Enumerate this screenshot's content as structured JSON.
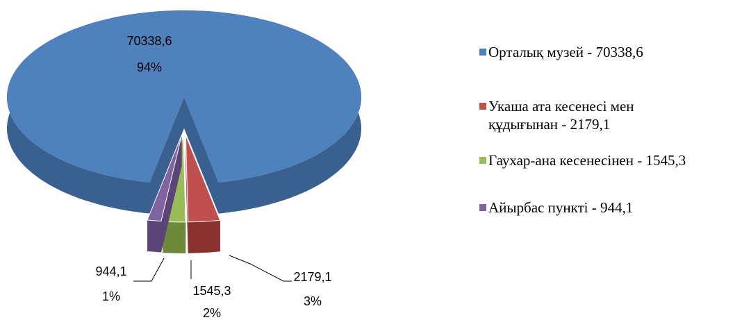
{
  "chart_data": {
    "type": "pie3d",
    "categories": [
      "Орталық музей - 70338,6",
      "Укаша ата кесенесі мен құдығынан - 2179,1",
      "Гаухар-ана кесенесінен - 1545,3",
      "Айырбас пункті - 944,1"
    ],
    "values": [
      70338.6,
      2179.1,
      1545.3,
      944.1
    ],
    "value_labels": [
      "70338,6",
      "2179,1",
      "1545,3",
      "944,1"
    ],
    "percent_labels": [
      "94%",
      "3%",
      "2%",
      "1%"
    ],
    "colors": [
      "#4f81bd",
      "#c0504d",
      "#9bbb59",
      "#8064a2"
    ],
    "side_colors": [
      "#3a6090",
      "#8a3230",
      "#6d8a3a",
      "#5a4478"
    ],
    "legend": "right"
  }
}
